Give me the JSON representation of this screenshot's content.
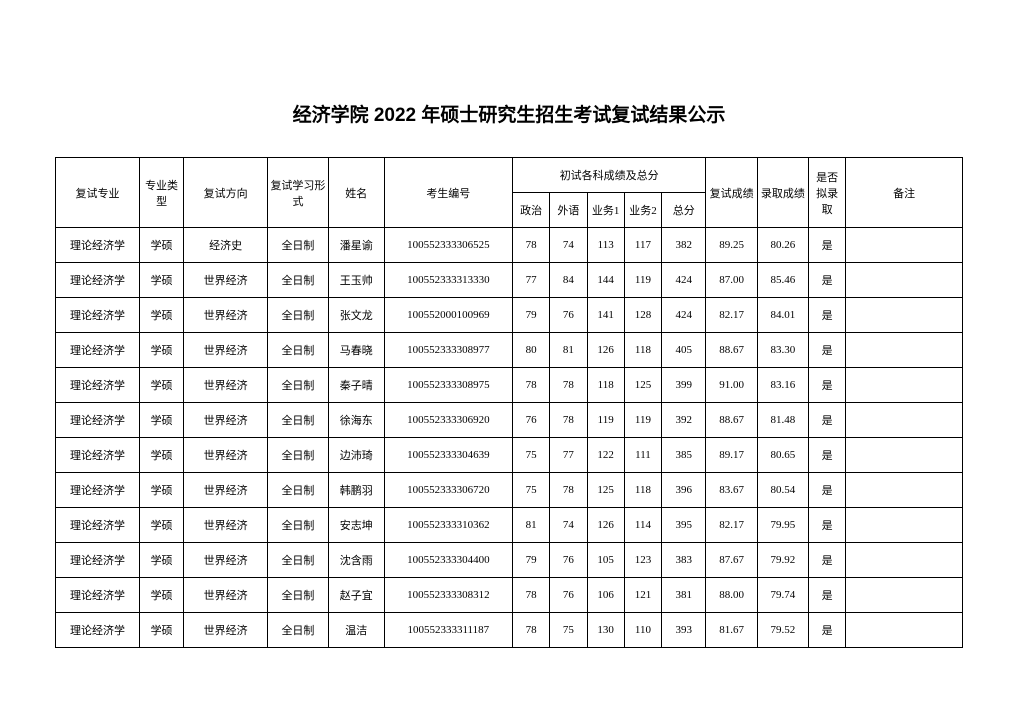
{
  "title": "经济学院 2022 年硕士研究生招生考试复试结果公示",
  "headers": {
    "major": "复试专业",
    "type": "专业类型",
    "direction": "复试方向",
    "form": "复试学习形式",
    "name": "姓名",
    "examId": "考生编号",
    "scores": "初试各科成绩及总分",
    "politics": "政治",
    "foreign": "外语",
    "biz1": "业务1",
    "biz2": "业务2",
    "total": "总分",
    "fushi": "复试成绩",
    "luqu": "录取成绩",
    "admitted": "是否拟录取",
    "note": "备注"
  },
  "rows": [
    {
      "major": "理论经济学",
      "type": "学硕",
      "direction": "经济史",
      "form": "全日制",
      "name": "潘星谕",
      "id": "100552333306525",
      "pol": "78",
      "for": "74",
      "b1": "113",
      "b2": "117",
      "tot": "382",
      "fs": "89.25",
      "lq": "80.26",
      "adm": "是",
      "note": ""
    },
    {
      "major": "理论经济学",
      "type": "学硕",
      "direction": "世界经济",
      "form": "全日制",
      "name": "王玉帅",
      "id": "100552333313330",
      "pol": "77",
      "for": "84",
      "b1": "144",
      "b2": "119",
      "tot": "424",
      "fs": "87.00",
      "lq": "85.46",
      "adm": "是",
      "note": ""
    },
    {
      "major": "理论经济学",
      "type": "学硕",
      "direction": "世界经济",
      "form": "全日制",
      "name": "张文龙",
      "id": "100552000100969",
      "pol": "79",
      "for": "76",
      "b1": "141",
      "b2": "128",
      "tot": "424",
      "fs": "82.17",
      "lq": "84.01",
      "adm": "是",
      "note": ""
    },
    {
      "major": "理论经济学",
      "type": "学硕",
      "direction": "世界经济",
      "form": "全日制",
      "name": "马春晓",
      "id": "100552333308977",
      "pol": "80",
      "for": "81",
      "b1": "126",
      "b2": "118",
      "tot": "405",
      "fs": "88.67",
      "lq": "83.30",
      "adm": "是",
      "note": ""
    },
    {
      "major": "理论经济学",
      "type": "学硕",
      "direction": "世界经济",
      "form": "全日制",
      "name": "秦子晴",
      "id": "100552333308975",
      "pol": "78",
      "for": "78",
      "b1": "118",
      "b2": "125",
      "tot": "399",
      "fs": "91.00",
      "lq": "83.16",
      "adm": "是",
      "note": ""
    },
    {
      "major": "理论经济学",
      "type": "学硕",
      "direction": "世界经济",
      "form": "全日制",
      "name": "徐海东",
      "id": "100552333306920",
      "pol": "76",
      "for": "78",
      "b1": "119",
      "b2": "119",
      "tot": "392",
      "fs": "88.67",
      "lq": "81.48",
      "adm": "是",
      "note": ""
    },
    {
      "major": "理论经济学",
      "type": "学硕",
      "direction": "世界经济",
      "form": "全日制",
      "name": "边沛琦",
      "id": "100552333304639",
      "pol": "75",
      "for": "77",
      "b1": "122",
      "b2": "111",
      "tot": "385",
      "fs": "89.17",
      "lq": "80.65",
      "adm": "是",
      "note": ""
    },
    {
      "major": "理论经济学",
      "type": "学硕",
      "direction": "世界经济",
      "form": "全日制",
      "name": "韩鹏羽",
      "id": "100552333306720",
      "pol": "75",
      "for": "78",
      "b1": "125",
      "b2": "118",
      "tot": "396",
      "fs": "83.67",
      "lq": "80.54",
      "adm": "是",
      "note": ""
    },
    {
      "major": "理论经济学",
      "type": "学硕",
      "direction": "世界经济",
      "form": "全日制",
      "name": "安志坤",
      "id": "100552333310362",
      "pol": "81",
      "for": "74",
      "b1": "126",
      "b2": "114",
      "tot": "395",
      "fs": "82.17",
      "lq": "79.95",
      "adm": "是",
      "note": ""
    },
    {
      "major": "理论经济学",
      "type": "学硕",
      "direction": "世界经济",
      "form": "全日制",
      "name": "沈含雨",
      "id": "100552333304400",
      "pol": "79",
      "for": "76",
      "b1": "105",
      "b2": "123",
      "tot": "383",
      "fs": "87.67",
      "lq": "79.92",
      "adm": "是",
      "note": ""
    },
    {
      "major": "理论经济学",
      "type": "学硕",
      "direction": "世界经济",
      "form": "全日制",
      "name": "赵子宜",
      "id": "100552333308312",
      "pol": "78",
      "for": "76",
      "b1": "106",
      "b2": "121",
      "tot": "381",
      "fs": "88.00",
      "lq": "79.74",
      "adm": "是",
      "note": ""
    },
    {
      "major": "理论经济学",
      "type": "学硕",
      "direction": "世界经济",
      "form": "全日制",
      "name": "温洁",
      "id": "100552333311187",
      "pol": "78",
      "for": "75",
      "b1": "130",
      "b2": "110",
      "tot": "393",
      "fs": "81.67",
      "lq": "79.52",
      "adm": "是",
      "note": ""
    }
  ]
}
